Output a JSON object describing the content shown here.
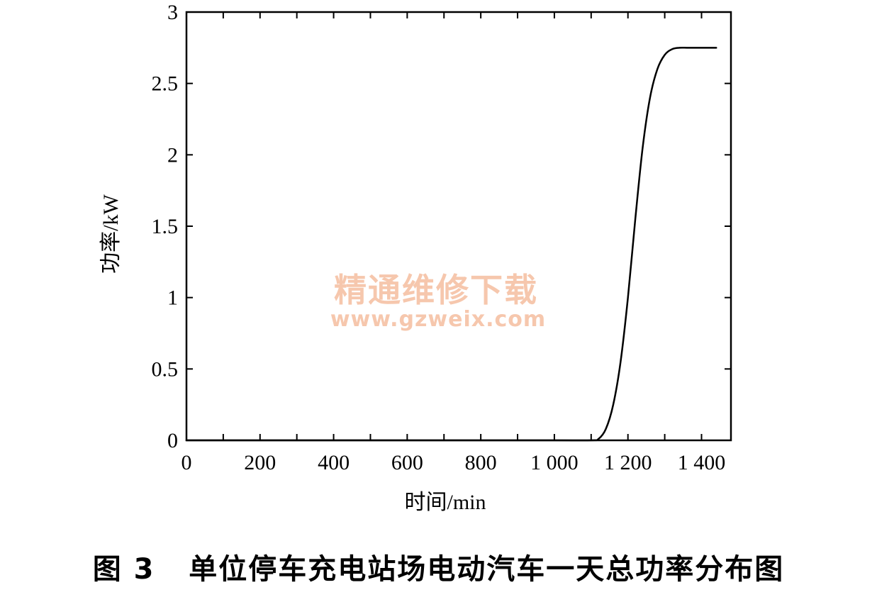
{
  "figure": {
    "caption": "图 3   单位停车充电站场电动汽车一天总功率分布图"
  },
  "watermark": {
    "title": "精通维修下载",
    "url": "www.gzweix.com"
  },
  "chart_data": {
    "type": "line",
    "title": "",
    "xlabel": "时间/min",
    "ylabel": "功率/kW",
    "xlim": [
      0,
      1480
    ],
    "ylim": [
      0,
      3
    ],
    "x_ticks": [
      0,
      200,
      400,
      600,
      800,
      1000,
      1200,
      1400
    ],
    "x_tick_labels": [
      "0",
      "200",
      "400",
      "600",
      "800",
      "1 000",
      "1 200",
      "1 400"
    ],
    "y_ticks": [
      0,
      0.5,
      1,
      1.5,
      2,
      2.5,
      3
    ],
    "y_tick_labels": [
      "0",
      "0.5",
      "1",
      "1.5",
      "2",
      "2.5",
      "3"
    ],
    "grid": false,
    "line_color": "#000000",
    "series": [
      {
        "x": [
          0,
          200,
          400,
          600,
          800,
          1000,
          1100,
          1120,
          1140,
          1160,
          1180,
          1200,
          1220,
          1240,
          1260,
          1280,
          1300,
          1320,
          1340,
          1360,
          1380,
          1400,
          1420,
          1440
        ],
        "values": [
          0,
          0,
          0,
          0,
          0,
          0,
          0,
          0.01,
          0.08,
          0.25,
          0.55,
          1.0,
          1.55,
          2.05,
          2.4,
          2.6,
          2.7,
          2.74,
          2.75,
          2.75,
          2.75,
          2.75,
          2.75,
          2.75
        ]
      }
    ]
  }
}
